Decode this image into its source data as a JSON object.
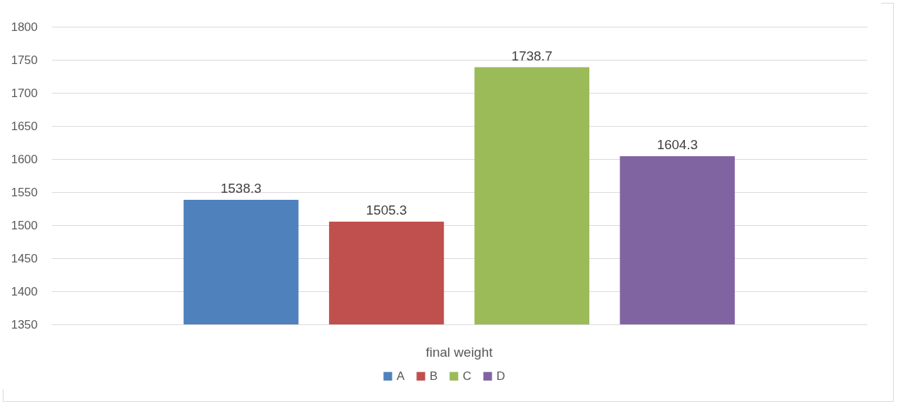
{
  "chart_data": {
    "type": "bar",
    "categories": [
      "final weight"
    ],
    "series": [
      {
        "name": "A",
        "color": "#4f81bd",
        "values": [
          1538.3
        ]
      },
      {
        "name": "B",
        "color": "#c0504d",
        "values": [
          1505.3
        ]
      },
      {
        "name": "C",
        "color": "#9bbb59",
        "values": [
          1738.7
        ]
      },
      {
        "name": "D",
        "color": "#8064a2",
        "values": [
          1604.3
        ]
      }
    ],
    "ylim": [
      1350,
      1800
    ],
    "yticks": [
      1350,
      1400,
      1450,
      1500,
      1550,
      1600,
      1650,
      1700,
      1750,
      1800
    ],
    "grid": "y",
    "legend": "bottom",
    "data_labels": true
  }
}
